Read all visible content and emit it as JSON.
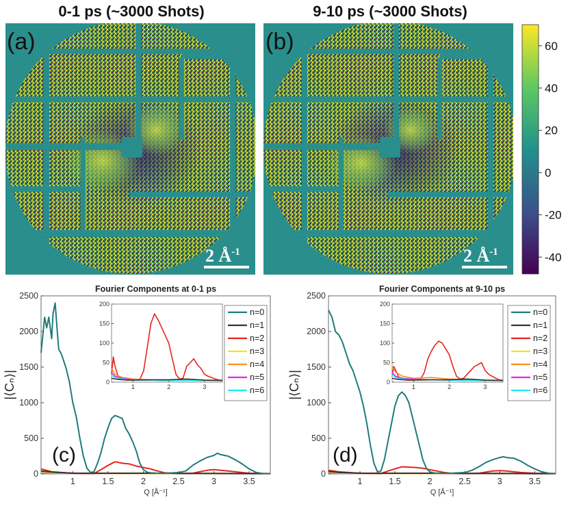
{
  "top": {
    "panel_a": {
      "title": "0-1 ps (~3000 Shots)",
      "label": "(a)",
      "scale_bar": "2 Å",
      "scale_sup": "-1"
    },
    "panel_b": {
      "title": "9-10 ps (~3000 Shots)",
      "label": "(b)",
      "scale_bar": "2 Å",
      "scale_sup": "-1"
    },
    "colorbar": {
      "ticks": [
        "60",
        "40",
        "20",
        "0",
        "-20",
        "-40"
      ],
      "colors": [
        "#fde725",
        "#21918c",
        "#440154"
      ]
    }
  },
  "chart_data": [
    {
      "type": "line",
      "panel_label": "(c)",
      "title": "Fourier Components at 0-1 ps",
      "xlabel": "Q [Å⁻¹]",
      "ylabel": "|⟨Cₙ⟩|",
      "xlim": [
        0.55,
        3.8
      ],
      "ylim": [
        0,
        2500
      ],
      "xticks": [
        "1",
        "1.5",
        "2",
        "2.5",
        "3",
        "3.5"
      ],
      "yticks": [
        "0",
        "500",
        "1000",
        "1500",
        "2000",
        "2500"
      ],
      "legend": [
        "n=0",
        "n=1",
        "n=2",
        "n=3",
        "n=4",
        "n=5",
        "n=6"
      ],
      "series": [
        {
          "name": "n=0",
          "color": "#1f7a7a",
          "x": [
            0.55,
            0.6,
            0.63,
            0.66,
            0.7,
            0.72,
            0.75,
            0.78,
            0.8,
            0.83,
            0.85,
            0.9,
            0.95,
            1.0,
            1.05,
            1.1,
            1.15,
            1.2,
            1.25,
            1.3,
            1.35,
            1.4,
            1.45,
            1.5,
            1.55,
            1.6,
            1.65,
            1.7,
            1.75,
            1.8,
            1.85,
            1.9,
            1.95,
            2.0,
            2.05,
            2.1,
            2.2,
            2.3,
            2.5,
            2.6,
            2.7,
            2.8,
            2.9,
            3.0,
            3.05,
            3.1,
            3.2,
            3.3,
            3.4,
            3.5,
            3.6,
            3.7,
            3.8
          ],
          "y": [
            1700,
            2200,
            2050,
            2200,
            1900,
            2250,
            2400,
            2000,
            1750,
            1700,
            1650,
            1500,
            1300,
            1000,
            800,
            500,
            250,
            80,
            20,
            30,
            150,
            300,
            500,
            650,
            780,
            820,
            800,
            780,
            640,
            560,
            450,
            320,
            150,
            60,
            25,
            15,
            10,
            8,
            20,
            40,
            120,
            180,
            230,
            260,
            290,
            270,
            250,
            200,
            140,
            70,
            20,
            5,
            5
          ]
        },
        {
          "name": "n=1",
          "color": "#333333",
          "x": [
            0.55,
            0.7,
            1.0,
            1.5,
            2.0,
            2.5,
            3.0,
            3.5,
            3.8
          ],
          "y": [
            40,
            25,
            10,
            10,
            10,
            8,
            8,
            5,
            5
          ]
        },
        {
          "name": "n=2",
          "color": "#e8211e",
          "x": [
            0.55,
            0.7,
            1.0,
            1.3,
            1.4,
            1.5,
            1.6,
            1.7,
            1.8,
            1.9,
            2.0,
            2.1,
            2.2,
            2.3,
            2.5,
            2.7,
            2.8,
            2.9,
            3.0,
            3.1,
            3.2,
            3.3,
            3.5,
            3.8
          ],
          "y": [
            70,
            30,
            10,
            5,
            60,
            120,
            170,
            150,
            140,
            110,
            90,
            70,
            40,
            15,
            5,
            10,
            30,
            50,
            60,
            50,
            40,
            30,
            10,
            5
          ]
        },
        {
          "name": "n=3",
          "color": "#e8e81a",
          "x": [
            0.55,
            0.7,
            1.0,
            2.0,
            3.0,
            3.8
          ],
          "y": [
            30,
            15,
            8,
            6,
            6,
            4
          ]
        },
        {
          "name": "n=4",
          "color": "#ff8c1a",
          "x": [
            0.55,
            0.7,
            1.0,
            2.0,
            3.0,
            3.8
          ],
          "y": [
            35,
            20,
            10,
            8,
            6,
            4
          ]
        },
        {
          "name": "n=5",
          "color": "#ee1fee",
          "x": [
            0.55,
            0.7,
            1.0,
            2.0,
            3.0,
            3.8
          ],
          "y": [
            25,
            12,
            6,
            5,
            4,
            3
          ]
        },
        {
          "name": "n=6",
          "color": "#1ee8ee",
          "x": [
            0.55,
            0.7,
            1.0,
            2.0,
            3.0,
            3.8
          ],
          "y": [
            15,
            10,
            5,
            5,
            4,
            3
          ]
        }
      ],
      "inset": {
        "xlim": [
          0.4,
          3.5
        ],
        "ylim": [
          0,
          200
        ],
        "xticks": [
          "1",
          "2",
          "3"
        ],
        "yticks": [
          "0",
          "50",
          "100",
          "150",
          "200"
        ],
        "series": [
          {
            "name": "n=2",
            "color": "#e8211e",
            "x": [
              0.4,
              0.45,
              0.5,
              0.6,
              0.8,
              1.0,
              1.2,
              1.3,
              1.4,
              1.5,
              1.6,
              1.7,
              1.8,
              1.9,
              2.0,
              2.1,
              2.2,
              2.3,
              2.4,
              2.5,
              2.6,
              2.7,
              2.8,
              2.9,
              3.0,
              3.1,
              3.2,
              3.3,
              3.4,
              3.5
            ],
            "y": [
              20,
              65,
              40,
              10,
              5,
              5,
              8,
              30,
              90,
              150,
              175,
              160,
              140,
              120,
              100,
              60,
              20,
              8,
              10,
              40,
              50,
              60,
              45,
              35,
              20,
              15,
              12,
              8,
              6,
              5
            ]
          },
          {
            "name": "n=4",
            "color": "#ff8c1a",
            "x": [
              0.4,
              0.5,
              0.7,
              1.0,
              1.5,
              2.0,
              2.5,
              3.0,
              3.5
            ],
            "y": [
              35,
              20,
              12,
              8,
              6,
              5,
              5,
              5,
              5
            ]
          },
          {
            "name": "n=5",
            "color": "#ee1fee",
            "x": [
              0.4,
              0.5,
              0.7,
              1.0,
              1.5,
              2.0,
              2.5,
              3.0,
              3.5
            ],
            "y": [
              25,
              15,
              10,
              6,
              5,
              4,
              4,
              4,
              4
            ]
          },
          {
            "name": "n=6",
            "color": "#1ee8ee",
            "x": [
              0.4,
              0.5,
              0.7,
              1.0,
              1.5,
              2.0,
              2.5,
              3.0,
              3.5
            ],
            "y": [
              18,
              12,
              8,
              5,
              5,
              4,
              4,
              4,
              4
            ]
          },
          {
            "name": "n=1",
            "color": "#333333",
            "x": [
              0.4,
              0.5,
              0.7,
              1.0,
              1.5,
              2.0,
              2.5,
              3.0,
              3.5
            ],
            "y": [
              10,
              8,
              6,
              5,
              6,
              6,
              8,
              5,
              4
            ]
          }
        ]
      }
    },
    {
      "type": "line",
      "panel_label": "(d)",
      "title": "Fourier Components at 9-10 ps",
      "xlabel": "Q [Å⁻¹]",
      "ylabel": "|⟨Cₙ⟩|",
      "xlim": [
        0.55,
        3.8
      ],
      "ylim": [
        0,
        2500
      ],
      "xticks": [
        "1",
        "1.5",
        "2",
        "2.5",
        "3",
        "3.5"
      ],
      "yticks": [
        "0",
        "500",
        "1000",
        "1500",
        "2000",
        "2500"
      ],
      "legend": [
        "n=0",
        "n=1",
        "n=2",
        "n=3",
        "n=4",
        "n=5",
        "n=6"
      ],
      "series": [
        {
          "name": "n=0",
          "color": "#1f7a7a",
          "x": [
            0.55,
            0.6,
            0.65,
            0.7,
            0.75,
            0.8,
            0.85,
            0.9,
            0.95,
            1.0,
            1.05,
            1.1,
            1.15,
            1.2,
            1.25,
            1.3,
            1.35,
            1.4,
            1.45,
            1.5,
            1.55,
            1.6,
            1.65,
            1.7,
            1.75,
            1.8,
            1.85,
            1.9,
            1.95,
            2.0,
            2.05,
            2.1,
            2.2,
            2.3,
            2.5,
            2.6,
            2.7,
            2.8,
            2.9,
            3.0,
            3.05,
            3.1,
            3.2,
            3.3,
            3.4,
            3.5,
            3.6,
            3.7,
            3.8
          ],
          "y": [
            2300,
            2200,
            2000,
            1950,
            1850,
            1700,
            1550,
            1450,
            1300,
            1150,
            950,
            700,
            400,
            150,
            30,
            40,
            200,
            450,
            700,
            950,
            1100,
            1150,
            1100,
            1000,
            800,
            600,
            400,
            200,
            80,
            30,
            15,
            10,
            8,
            10,
            20,
            50,
            100,
            160,
            200,
            230,
            240,
            230,
            220,
            180,
            120,
            70,
            30,
            10,
            5
          ]
        },
        {
          "name": "n=1",
          "color": "#333333",
          "x": [
            0.55,
            0.7,
            1.0,
            1.5,
            2.0,
            2.5,
            3.0,
            3.5,
            3.8
          ],
          "y": [
            35,
            20,
            10,
            10,
            10,
            8,
            8,
            5,
            5
          ]
        },
        {
          "name": "n=2",
          "color": "#e8211e",
          "x": [
            0.55,
            0.7,
            1.0,
            1.3,
            1.4,
            1.5,
            1.6,
            1.7,
            1.8,
            1.9,
            2.0,
            2.1,
            2.2,
            2.3,
            2.5,
            2.7,
            2.8,
            2.9,
            3.0,
            3.1,
            3.2,
            3.3,
            3.5,
            3.8
          ],
          "y": [
            50,
            30,
            10,
            5,
            40,
            70,
            100,
            95,
            90,
            80,
            60,
            40,
            20,
            10,
            5,
            10,
            25,
            40,
            45,
            40,
            30,
            20,
            10,
            5
          ]
        },
        {
          "name": "n=3",
          "color": "#e8e81a",
          "x": [
            0.55,
            0.7,
            1.0,
            2.0,
            3.0,
            3.8
          ],
          "y": [
            25,
            12,
            8,
            6,
            6,
            4
          ]
        },
        {
          "name": "n=4",
          "color": "#ff8c1a",
          "x": [
            0.55,
            0.7,
            1.0,
            2.0,
            3.0,
            3.8
          ],
          "y": [
            30,
            18,
            10,
            8,
            6,
            4
          ]
        },
        {
          "name": "n=5",
          "color": "#ee1fee",
          "x": [
            0.55,
            0.7,
            1.0,
            2.0,
            3.0,
            3.8
          ],
          "y": [
            20,
            10,
            6,
            5,
            4,
            3
          ]
        },
        {
          "name": "n=6",
          "color": "#1ee8ee",
          "x": [
            0.55,
            0.7,
            1.0,
            2.0,
            3.0,
            3.8
          ],
          "y": [
            15,
            10,
            5,
            5,
            4,
            3
          ]
        }
      ],
      "inset": {
        "xlim": [
          0.4,
          3.5
        ],
        "ylim": [
          0,
          200
        ],
        "xticks": [
          "1",
          "2",
          "3"
        ],
        "yticks": [
          "0",
          "50",
          "100",
          "150",
          "200"
        ],
        "series": [
          {
            "name": "n=2",
            "color": "#e8211e",
            "x": [
              0.4,
              0.45,
              0.5,
              0.6,
              0.8,
              1.0,
              1.2,
              1.3,
              1.4,
              1.5,
              1.6,
              1.7,
              1.8,
              1.9,
              2.0,
              2.1,
              2.2,
              2.3,
              2.4,
              2.5,
              2.6,
              2.7,
              2.8,
              2.9,
              3.0,
              3.1,
              3.2,
              3.3,
              3.4,
              3.5
            ],
            "y": [
              20,
              40,
              30,
              10,
              5,
              5,
              8,
              25,
              60,
              80,
              95,
              105,
              100,
              85,
              70,
              40,
              15,
              8,
              10,
              20,
              30,
              40,
              45,
              50,
              30,
              20,
              15,
              10,
              6,
              5
            ]
          },
          {
            "name": "n=4",
            "color": "#ff8c1a",
            "x": [
              0.4,
              0.5,
              0.7,
              1.0,
              1.5,
              2.0,
              2.5,
              3.0,
              3.5
            ],
            "y": [
              40,
              25,
              15,
              10,
              12,
              8,
              6,
              5,
              5
            ]
          },
          {
            "name": "n=5",
            "color": "#ee1fee",
            "x": [
              0.4,
              0.5,
              0.7,
              1.0,
              1.5,
              2.0,
              2.5,
              3.0,
              3.5
            ],
            "y": [
              25,
              15,
              10,
              8,
              6,
              5,
              4,
              4,
              4
            ]
          },
          {
            "name": "n=6",
            "color": "#1ee8ee",
            "x": [
              0.4,
              0.5,
              0.7,
              1.0,
              1.5,
              2.0,
              2.5,
              3.0,
              3.5
            ],
            "y": [
              20,
              12,
              8,
              6,
              6,
              5,
              4,
              4,
              4
            ]
          },
          {
            "name": "n=1",
            "color": "#333333",
            "x": [
              0.4,
              0.5,
              0.7,
              1.0,
              1.5,
              2.0,
              2.5,
              3.0,
              3.5
            ],
            "y": [
              10,
              8,
              6,
              5,
              6,
              6,
              8,
              5,
              4
            ]
          }
        ]
      }
    }
  ]
}
